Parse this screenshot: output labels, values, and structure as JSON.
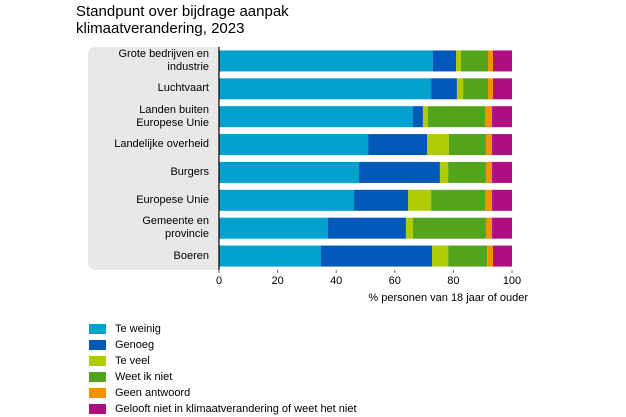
{
  "chart_data": {
    "type": "stacked-barh",
    "title": "Standpunt over bijdrage aanpak klimaatverandering, 2023",
    "xlabel": "% personen van 18 jaar of ouder",
    "categories": [
      "Grote bedrijven en industrie",
      "Luchtvaart",
      "Landen buiten Europese Unie",
      "Landelijke overheid",
      "Burgers",
      "Europese Unie",
      "Gemeente en provincie",
      "Boeren"
    ],
    "series": [
      {
        "name": "Te weinig",
        "color": "#00a1cd",
        "values": [
          73.0,
          72.4,
          66.2,
          50.9,
          47.8,
          46.1,
          37.2,
          34.8
        ]
      },
      {
        "name": "Genoeg",
        "color": "#0058b8",
        "values": [
          7.9,
          8.8,
          3.4,
          20.1,
          27.6,
          18.4,
          26.6,
          37.9
        ]
      },
      {
        "name": "Te veel",
        "color": "#afcb05",
        "values": [
          1.7,
          2.1,
          1.7,
          7.5,
          2.8,
          7.9,
          2.4,
          5.5
        ]
      },
      {
        "name": "Weet ik niet",
        "color": "#53a31d",
        "values": [
          9.2,
          8.5,
          19.5,
          12.6,
          12.9,
          18.4,
          24.9,
          13.3
        ]
      },
      {
        "name": "Geen antwoord",
        "color": "#f39200",
        "values": [
          1.7,
          1.7,
          2.4,
          2.1,
          2.1,
          2.4,
          2.1,
          2.0
        ]
      },
      {
        "name": "Gelooft niet in klimaatverandering of weet het niet",
        "color": "#af0e80",
        "values": [
          6.5,
          6.5,
          6.8,
          6.8,
          6.8,
          6.8,
          6.8,
          6.5
        ]
      }
    ],
    "xlim": [
      0,
      100
    ],
    "xticks": [
      0,
      20,
      40,
      60,
      80,
      100
    ]
  }
}
